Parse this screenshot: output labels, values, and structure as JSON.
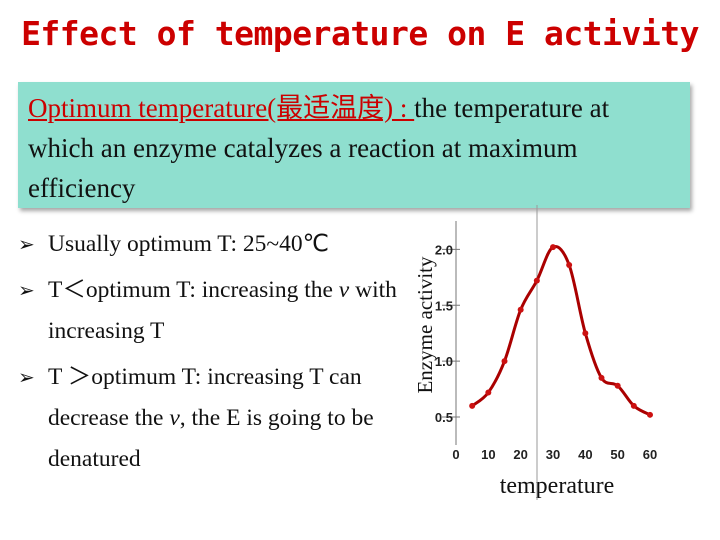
{
  "slide": {
    "title": "Effect of temperature on E activity"
  },
  "definition": {
    "term": "Optimum temperature(最适温度) : ",
    "text": " the temperature at which an enzyme catalyzes a reaction at maximum efficiency"
  },
  "bullets": [
    {
      "parts": [
        "Usually optimum T: 25~40℃"
      ]
    },
    {
      "parts": [
        "T＜optimum T:  increasing the ",
        "v",
        " with increasing T"
      ]
    },
    {
      "parts": [
        "T ＞optimum T: increasing T can decrease the ",
        "v",
        ", the E is going to be denatured"
      ]
    }
  ],
  "chart_data": {
    "type": "line",
    "title": "",
    "xlabel": "temperature",
    "ylabel": "Enzyme activity",
    "x_ticks": [
      "0",
      "10",
      "20",
      "30",
      "40",
      "50",
      "60"
    ],
    "y_ticks": [
      "0.5",
      "1.0",
      "1.5",
      "2.0"
    ],
    "xlim": [
      0,
      60
    ],
    "ylim": [
      0.25,
      2.2
    ],
    "color": "#cc1111",
    "line_color": "#aa0000",
    "x": [
      5,
      10,
      15,
      20,
      25,
      30,
      35,
      40,
      45,
      50,
      55,
      60
    ],
    "y": [
      0.6,
      0.72,
      1.0,
      1.46,
      1.72,
      2.02,
      1.86,
      1.25,
      0.85,
      0.78,
      0.6,
      0.52
    ]
  }
}
